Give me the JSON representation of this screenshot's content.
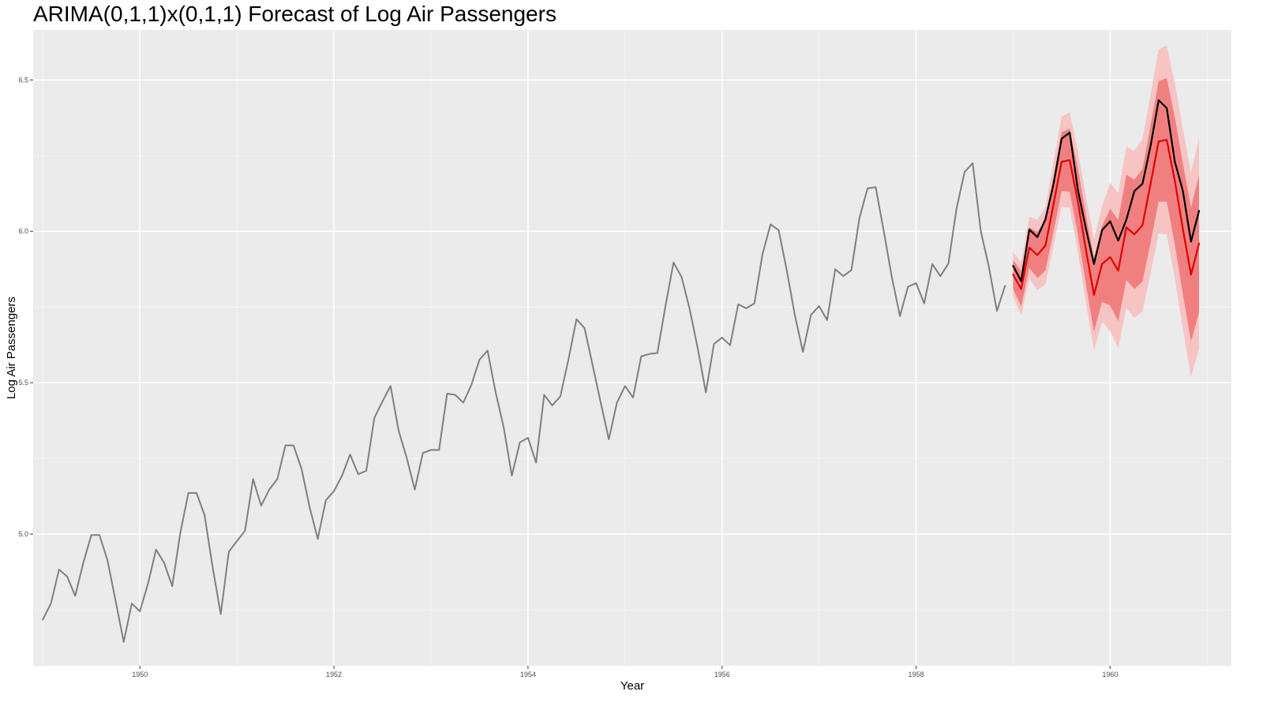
{
  "chart_data": {
    "type": "line",
    "title": "ARIMA(0,1,1)x(0,1,1) Forecast of Log Air Passengers",
    "xlabel": "Year",
    "ylabel": "Log Air Passengers",
    "xlim": [
      1948.9,
      1961.25
    ],
    "ylim": [
      4.565,
      6.665
    ],
    "x_ticks": [
      1950,
      1952,
      1954,
      1956,
      1958,
      1960
    ],
    "y_ticks": [
      5.0,
      5.5,
      6.0,
      6.5
    ],
    "grid": true,
    "series": [
      {
        "role": "observed",
        "color": "#7f7f7f",
        "x_start": 1949.0,
        "x_step": 0.0833333,
        "values": [
          4.718,
          4.771,
          4.883,
          4.86,
          4.796,
          4.905,
          4.997,
          4.997,
          4.913,
          4.779,
          4.644,
          4.771,
          4.745,
          4.836,
          4.949,
          4.905,
          4.828,
          5.004,
          5.136,
          5.136,
          5.063,
          4.89,
          4.736,
          4.942,
          4.977,
          5.011,
          5.182,
          5.094,
          5.147,
          5.182,
          5.293,
          5.293,
          5.215,
          5.088,
          4.984,
          5.112,
          5.142,
          5.193,
          5.263,
          5.198,
          5.209,
          5.384,
          5.438,
          5.489,
          5.342,
          5.252,
          5.147,
          5.268,
          5.278,
          5.278,
          5.464,
          5.46,
          5.434,
          5.493,
          5.576,
          5.606,
          5.468,
          5.352,
          5.193,
          5.303,
          5.318,
          5.236,
          5.46,
          5.425,
          5.455,
          5.576,
          5.71,
          5.68,
          5.557,
          5.434,
          5.313,
          5.434,
          5.489,
          5.451,
          5.587,
          5.595,
          5.598,
          5.753,
          5.897,
          5.849,
          5.743,
          5.613,
          5.468,
          5.628,
          5.649,
          5.624,
          5.759,
          5.746,
          5.762,
          5.924,
          6.023,
          6.004,
          5.872,
          5.724,
          5.602,
          5.724,
          5.753,
          5.707,
          5.875,
          5.852,
          5.872,
          6.045,
          6.142,
          6.146,
          6.001,
          5.849,
          5.72,
          5.817,
          5.829,
          5.762,
          5.892,
          5.852,
          5.894,
          6.075,
          6.196,
          6.225,
          6.001,
          5.883,
          5.737,
          5.82
        ]
      },
      {
        "role": "actual",
        "color": "#000000",
        "x_start": 1959.0,
        "x_step": 0.0833333,
        "values": [
          5.886,
          5.835,
          6.006,
          5.981,
          6.04,
          6.157,
          6.306,
          6.326,
          6.138,
          6.009,
          5.892,
          6.004,
          6.033,
          5.969,
          6.038,
          6.133,
          6.157,
          6.282,
          6.433,
          6.407,
          6.23,
          6.133,
          5.966,
          6.068
        ]
      },
      {
        "role": "forecast",
        "color": "#e00000",
        "x_start": 1959.0,
        "x_step": 0.0833333,
        "values": [
          5.857,
          5.81,
          5.946,
          5.922,
          5.953,
          6.09,
          6.23,
          6.235,
          6.1,
          5.94,
          5.79,
          5.892,
          5.915,
          5.87,
          6.013,
          5.99,
          6.02,
          6.157,
          6.297,
          6.302,
          6.167,
          6.007,
          5.857,
          5.96
        ]
      }
    ],
    "intervals": [
      {
        "level": "95%",
        "color": "#f7c4c4",
        "lower": [
          5.783,
          5.722,
          5.843,
          5.806,
          5.826,
          5.951,
          6.081,
          6.077,
          5.933,
          5.764,
          5.606,
          5.701,
          5.67,
          5.614,
          5.747,
          5.714,
          5.735,
          5.862,
          5.993,
          5.99,
          5.845,
          5.677,
          5.519,
          5.613
        ],
        "upper": [
          5.931,
          5.898,
          6.049,
          6.038,
          6.08,
          6.229,
          6.379,
          6.393,
          6.267,
          6.116,
          5.974,
          6.083,
          6.16,
          6.126,
          6.279,
          6.266,
          6.305,
          6.452,
          6.601,
          6.614,
          6.489,
          6.337,
          6.195,
          6.307
        ]
      },
      {
        "level": "80%",
        "color": "#f08080",
        "lower": [
          5.809,
          5.752,
          5.879,
          5.846,
          5.87,
          5.999,
          6.133,
          6.131,
          5.991,
          5.825,
          5.669,
          5.767,
          5.755,
          5.703,
          5.839,
          5.809,
          5.834,
          5.964,
          6.098,
          6.098,
          5.957,
          5.791,
          5.636,
          5.733
        ],
        "upper": [
          5.905,
          5.868,
          6.013,
          5.998,
          6.036,
          6.181,
          6.327,
          6.339,
          6.209,
          6.055,
          5.911,
          6.017,
          6.075,
          6.037,
          6.187,
          6.171,
          6.206,
          6.35,
          6.496,
          6.506,
          6.377,
          6.223,
          6.078,
          6.187
        ]
      }
    ]
  }
}
